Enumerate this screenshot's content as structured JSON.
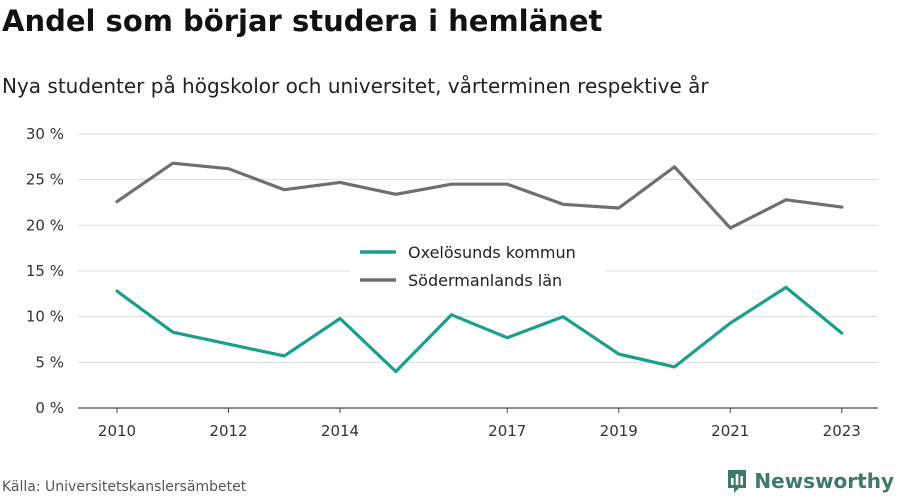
{
  "header": {
    "title": "Andel som börjar studera i hemlänet",
    "subtitle": "Nya studenter på högskolor och universitet, vårterminen respektive år"
  },
  "footer": {
    "source": "Källa: Universitetskanslersämbetet",
    "brand_name": "Newsworthy",
    "brand_icon": "newsworthy-logo-icon",
    "brand_color": "#3d7a6c"
  },
  "chart_data": {
    "type": "line",
    "x": [
      2010,
      2011,
      2012,
      2013,
      2014,
      2015,
      2016,
      2017,
      2018,
      2019,
      2020,
      2021,
      2022,
      2023
    ],
    "x_ticks": [
      2010,
      2012,
      2014,
      2017,
      2019,
      2021,
      2023
    ],
    "x_tick_labels": [
      "2010",
      "2012",
      "2014",
      "2017",
      "2019",
      "2021",
      "2023"
    ],
    "y_ticks": [
      0,
      5,
      10,
      15,
      20,
      25,
      30
    ],
    "y_tick_labels": [
      "0 %",
      "5 %",
      "10 %",
      "15 %",
      "20 %",
      "25 %",
      "30 %"
    ],
    "ylim": [
      0,
      30
    ],
    "xlim": [
      2009.3,
      2023.65
    ],
    "grid": true,
    "legend_position": "center",
    "series": [
      {
        "name": "Oxelösunds kommun",
        "color": "#1a9e8f",
        "values": [
          12.8,
          8.3,
          7.0,
          5.7,
          9.8,
          4.0,
          10.2,
          7.7,
          10.0,
          5.9,
          4.5,
          9.3,
          13.2,
          8.2
        ]
      },
      {
        "name": "Södermanlands län",
        "color": "#6e6e73",
        "values": [
          22.6,
          26.8,
          26.2,
          23.9,
          24.7,
          23.4,
          24.5,
          24.5,
          22.3,
          21.9,
          26.4,
          19.7,
          22.8,
          22.0
        ]
      }
    ]
  }
}
